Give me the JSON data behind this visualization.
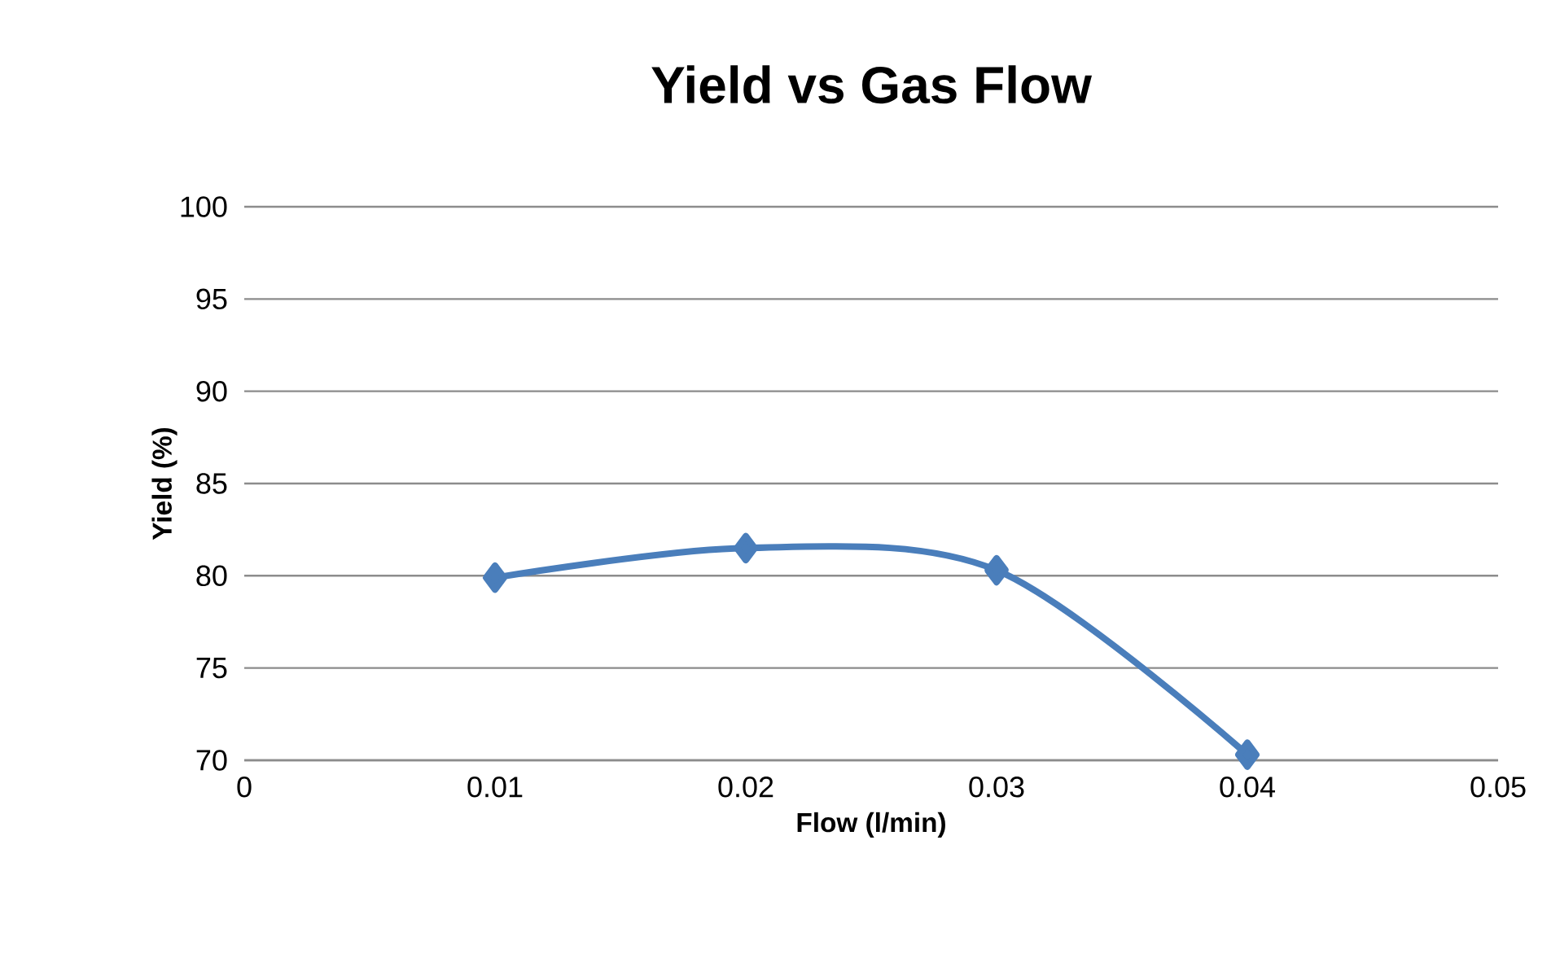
{
  "chart_data": {
    "type": "line",
    "title": "Yield vs Gas Flow",
    "xlabel": "Flow (l/min)",
    "ylabel": "Yield (%)",
    "x": [
      0.01,
      0.02,
      0.03,
      0.04
    ],
    "series": [
      {
        "color": "#4a7ebb",
        "values": [
          79.9,
          81.5,
          80.3,
          70.3
        ]
      }
    ],
    "xlim": [
      0,
      0.05
    ],
    "xticks": [
      0,
      0.01,
      0.02,
      0.03,
      0.04,
      0.05
    ],
    "ylim": [
      70,
      100
    ],
    "yticks": [
      70,
      75,
      80,
      85,
      90,
      95,
      100
    ],
    "grid": "y",
    "marker": "diamond",
    "line_style": "solid"
  }
}
